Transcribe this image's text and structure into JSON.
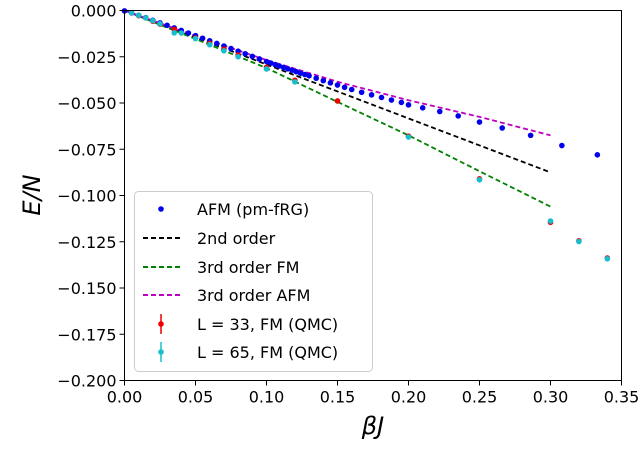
{
  "chart_data": {
    "type": "scatter",
    "xlabel": "βJ",
    "ylabel": "E/N",
    "xlim": [
      0,
      0.35
    ],
    "ylim": [
      -0.2,
      0
    ],
    "xticks": [
      0.0,
      0.05,
      0.1,
      0.15,
      0.2,
      0.25,
      0.3,
      0.35
    ],
    "xtick_labels": [
      "0.00",
      "0.05",
      "0.10",
      "0.15",
      "0.20",
      "0.25",
      "0.30",
      "0.35"
    ],
    "yticks": [
      0.0,
      -0.025,
      -0.05,
      -0.075,
      -0.1,
      -0.125,
      -0.15,
      -0.175,
      -0.2
    ],
    "ytick_labels": [
      "0.000",
      "−0.025",
      "−0.050",
      "−0.075",
      "−0.100",
      "−0.125",
      "−0.150",
      "−0.175",
      "−0.200"
    ],
    "grid": false,
    "legend_position": "lower-left",
    "series": [
      {
        "name": "AFM (pm-fRG)",
        "kind": "points",
        "color": "#0000ee",
        "x": [
          0.0,
          0.005,
          0.01,
          0.015,
          0.02,
          0.025,
          0.03,
          0.035,
          0.04,
          0.045,
          0.05,
          0.055,
          0.06,
          0.065,
          0.07,
          0.075,
          0.08,
          0.085,
          0.09,
          0.095,
          0.1,
          0.103,
          0.106,
          0.109,
          0.112,
          0.115,
          0.118,
          0.121,
          0.124,
          0.127,
          0.13,
          0.135,
          0.14,
          0.145,
          0.15,
          0.155,
          0.16,
          0.167,
          0.174,
          0.181,
          0.188,
          0.195,
          0.2,
          0.21,
          0.222,
          0.235,
          0.25,
          0.266,
          0.286,
          0.308,
          0.333
        ],
        "y": [
          -0.0002,
          -0.0013,
          -0.0026,
          -0.0039,
          -0.0053,
          -0.0067,
          -0.008,
          -0.0094,
          -0.0108,
          -0.0122,
          -0.0136,
          -0.015,
          -0.0164,
          -0.0178,
          -0.0192,
          -0.0206,
          -0.022,
          -0.0234,
          -0.0248,
          -0.0262,
          -0.0276,
          -0.0284,
          -0.0292,
          -0.03,
          -0.0308,
          -0.0315,
          -0.0323,
          -0.0331,
          -0.0339,
          -0.0346,
          -0.0353,
          -0.0366,
          -0.0379,
          -0.0391,
          -0.0403,
          -0.0415,
          -0.0427,
          -0.0442,
          -0.0456,
          -0.047,
          -0.0484,
          -0.0497,
          -0.051,
          -0.0526,
          -0.0546,
          -0.057,
          -0.0603,
          -0.0635,
          -0.0675,
          -0.073,
          -0.078
        ]
      },
      {
        "name": "2nd order",
        "kind": "dashed-line",
        "color": "#000000",
        "x": [
          0.0,
          0.3
        ],
        "y": [
          0.0,
          -0.0875
        ]
      },
      {
        "name": "3rd order FM",
        "kind": "dashed-line",
        "color": "#008000",
        "x": [
          0.0,
          0.05,
          0.1,
          0.15,
          0.2,
          0.25,
          0.3
        ],
        "y": [
          0.0,
          -0.0154,
          -0.0311,
          -0.0494,
          -0.0675,
          -0.0869,
          -0.106
        ]
      },
      {
        "name": "3rd order AFM",
        "kind": "dashed-line",
        "color": "#bf00bf",
        "x": [
          0.0,
          0.05,
          0.1,
          0.15,
          0.2,
          0.25,
          0.3
        ],
        "y": [
          0.0,
          -0.0137,
          -0.0268,
          -0.0385,
          -0.0485,
          -0.0575,
          -0.0675
        ]
      },
      {
        "name": "L = 33, FM (QMC)",
        "kind": "errorbar-points",
        "color": "#ee0000",
        "x": [
          0.01,
          0.02,
          0.025,
          0.035,
          0.05,
          0.06,
          0.07,
          0.08,
          0.1,
          0.12,
          0.15,
          0.2,
          0.25,
          0.3,
          0.32,
          0.34
        ],
        "y": [
          -0.0028,
          -0.0058,
          -0.0074,
          -0.0102,
          -0.0148,
          -0.0178,
          -0.0209,
          -0.0241,
          -0.0307,
          -0.0377,
          -0.0489,
          -0.0679,
          -0.091,
          -0.1145,
          -0.1245,
          -0.1338
        ]
      },
      {
        "name": "L = 65, FM (QMC)",
        "kind": "errorbar-points",
        "color": "#17becf",
        "x": [
          0.005,
          0.01,
          0.015,
          0.02,
          0.025,
          0.035,
          0.04,
          0.05,
          0.06,
          0.07,
          0.08,
          0.1,
          0.12,
          0.2,
          0.25,
          0.3,
          0.32,
          0.34
        ],
        "y": [
          -0.0012,
          -0.0026,
          -0.004,
          -0.0055,
          -0.0072,
          -0.0121,
          -0.0122,
          -0.0152,
          -0.0185,
          -0.0218,
          -0.025,
          -0.0316,
          -0.0386,
          -0.0684,
          -0.0915,
          -0.1138,
          -0.1249,
          -0.1342
        ]
      }
    ]
  }
}
